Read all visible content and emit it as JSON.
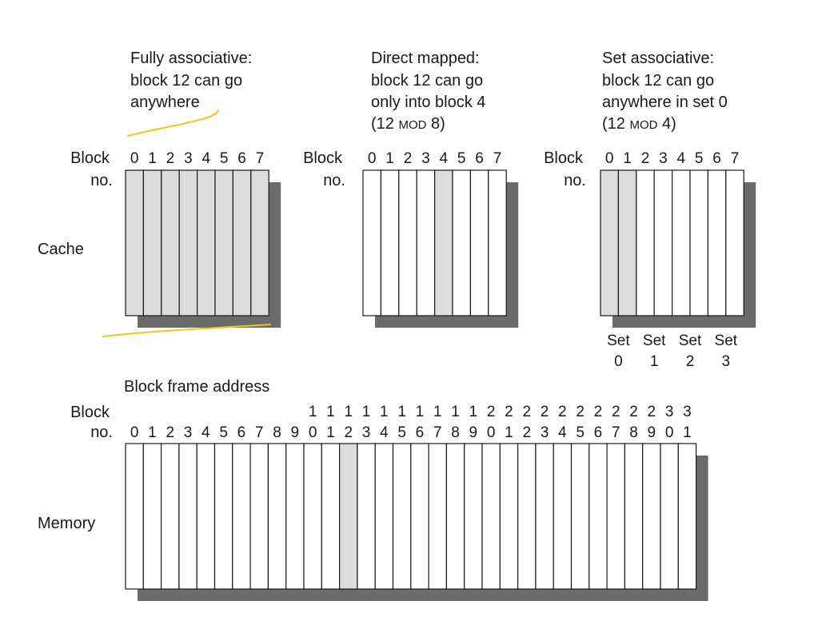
{
  "captions": {
    "fully": [
      "Fully associative:",
      "block 12 can go",
      "anywhere"
    ],
    "direct": {
      "lines": [
        "Direct mapped:",
        "block 12 can go",
        "only into block 4"
      ],
      "mod_open": "(12 ",
      "mod_word": "MOD",
      "mod_close": " 8)"
    },
    "setassoc": {
      "lines": [
        "Set associative:",
        "block 12 can go",
        "anywhere in set 0"
      ],
      "mod_open": "(12 ",
      "mod_word": "MOD",
      "mod_close": " 4)"
    }
  },
  "labels": {
    "block": "Block",
    "no": "no.",
    "cache": "Cache",
    "memory": "Memory",
    "block_frame_address": "Block frame address"
  },
  "cache_blocks": [
    "0",
    "1",
    "2",
    "3",
    "4",
    "5",
    "6",
    "7"
  ],
  "sets": [
    {
      "word": "Set",
      "num": "0"
    },
    {
      "word": "Set",
      "num": "1"
    },
    {
      "word": "Set",
      "num": "2"
    },
    {
      "word": "Set",
      "num": "3"
    }
  ],
  "memory_blocks": [
    "0",
    "1",
    "2",
    "3",
    "4",
    "5",
    "6",
    "7",
    "8",
    "9",
    "10",
    "11",
    "12",
    "13",
    "14",
    "15",
    "16",
    "17",
    "18",
    "19",
    "20",
    "21",
    "22",
    "23",
    "24",
    "25",
    "26",
    "27",
    "28",
    "29",
    "30",
    "31"
  ],
  "highlight": {
    "fully": [
      0,
      1,
      2,
      3,
      4,
      5,
      6,
      7
    ],
    "direct": [
      4
    ],
    "setassoc": [
      0,
      1
    ],
    "memory": [
      12
    ]
  },
  "colors": {
    "highlight": "#dcdcdc",
    "shadow": "#6b6b6b",
    "stroke": "#1a1a1a",
    "annotation": "#f0c419"
  }
}
